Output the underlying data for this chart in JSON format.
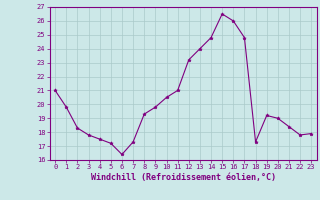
{
  "x": [
    0,
    1,
    2,
    3,
    4,
    5,
    6,
    7,
    8,
    9,
    10,
    11,
    12,
    13,
    14,
    15,
    16,
    17,
    18,
    19,
    20,
    21,
    22,
    23
  ],
  "y": [
    21.0,
    19.8,
    18.3,
    17.8,
    17.5,
    17.2,
    16.4,
    17.3,
    19.3,
    19.8,
    20.5,
    21.0,
    23.2,
    24.0,
    24.8,
    26.5,
    26.0,
    24.8,
    17.3,
    19.2,
    19.0,
    18.4,
    17.8,
    17.9
  ],
  "line_color": "#800080",
  "marker": "*",
  "marker_size": 2.5,
  "bg_color": "#cce8e8",
  "grid_color": "#aacaca",
  "xlabel": "Windchill (Refroidissement éolien,°C)",
  "xlabel_color": "#800080",
  "tick_color": "#800080",
  "axis_color": "#800080",
  "ylim": [
    16,
    27
  ],
  "xlim": [
    -0.5,
    23.5
  ],
  "yticks": [
    16,
    17,
    18,
    19,
    20,
    21,
    22,
    23,
    24,
    25,
    26,
    27
  ],
  "xticks": [
    0,
    1,
    2,
    3,
    4,
    5,
    6,
    7,
    8,
    9,
    10,
    11,
    12,
    13,
    14,
    15,
    16,
    17,
    18,
    19,
    20,
    21,
    22,
    23
  ],
  "tick_fontsize": 5.0,
  "xlabel_fontsize": 6.0,
  "linewidth": 0.8
}
